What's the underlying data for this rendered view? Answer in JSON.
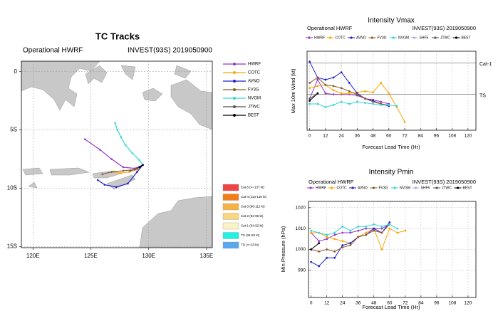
{
  "chart_data": [
    {
      "type": "track",
      "title": "TC Tracks",
      "subtitle_left": "Operational HWRF",
      "subtitle_right": "INVEST(93S) 2019050900",
      "xlim": [
        119,
        135.5
      ],
      "ylim": [
        -15.1,
        0.9
      ],
      "xticks": [
        {
          "value": 120,
          "label": "120E"
        },
        {
          "value": 125,
          "label": "125E"
        },
        {
          "value": 130,
          "label": "130E"
        },
        {
          "value": 135,
          "label": "135E"
        }
      ],
      "yticks": [
        0,
        {
          "value": -5,
          "label": "5S"
        },
        {
          "value": -10,
          "label": "10S"
        },
        {
          "value": -15,
          "label": "15S"
        }
      ],
      "grid": true,
      "series": [
        {
          "name": "HWRF",
          "color": "#9933cc",
          "lon": [
            129.5,
            128.8,
            127.8,
            126.8,
            125.8,
            124.5
          ],
          "lat": [
            -8.0,
            -8.3,
            -8.2,
            -7.5,
            -6.7,
            -5.8
          ]
        },
        {
          "name": "COTC",
          "color": "#ffa500",
          "lon": [
            129.5,
            129.0,
            128.3,
            127.6,
            127.0
          ],
          "lat": [
            -8.0,
            -8.4,
            -8.6,
            -8.7,
            -8.6
          ]
        },
        {
          "name": "AVNO",
          "color": "#1f1fcc",
          "lon": [
            129.5,
            129.0,
            128.2,
            127.2,
            126.2,
            125.6
          ],
          "lat": [
            -8.0,
            -8.6,
            -9.6,
            -9.9,
            -9.7,
            -9.3
          ]
        },
        {
          "name": "FV3G",
          "color": "#8b5a2b",
          "lon": [
            129.5,
            128.8,
            127.8,
            126.8,
            126.0
          ],
          "lat": [
            -8.0,
            -8.4,
            -8.5,
            -8.6,
            -8.8
          ]
        },
        {
          "name": "NVGM",
          "color": "#33d6d6",
          "lon": [
            129.5,
            129.2,
            128.6,
            128.0,
            127.6,
            127.3,
            127.1
          ],
          "lat": [
            -8.0,
            -7.6,
            -7.0,
            -6.3,
            -5.6,
            -5.0,
            -4.4
          ]
        },
        {
          "name": "JTWC",
          "color": "#555555",
          "lon": [
            129.5,
            129.0,
            128.4
          ],
          "lat": [
            -8.0,
            -8.3,
            -8.5
          ]
        },
        {
          "name": "BEST",
          "color": "#000000",
          "lon": [
            129.5,
            129.2
          ],
          "lat": [
            -8.0,
            -8.2
          ]
        }
      ],
      "intensity_legend": [
        {
          "name": "Cat-5 (>=137 kt)",
          "color": "#ee4444"
        },
        {
          "name": "Cat-4 (113-136 kt)",
          "color": "#f07f1a"
        },
        {
          "name": "Cat-3 (96-112 kt)",
          "color": "#f5b347"
        },
        {
          "name": "Cat-2 (83-95 kt)",
          "color": "#f8d77f"
        },
        {
          "name": "Cat-1 (64-82 kt)",
          "color": "#fbf3c4"
        },
        {
          "name": "TS (34-63 kt)",
          "color": "#22f2e6"
        },
        {
          "name": "TD (<=33 kt)",
          "color": "#5aa8f0"
        }
      ]
    },
    {
      "type": "line",
      "title": "Intensity Vmax",
      "subtitle_left": "Operational HWRF",
      "subtitle_right": "INVEST(93S) 2019050900",
      "x_label": "Forecast Lead Time (Hr)",
      "y_label": "Max 10m Wind (kt)",
      "xlim": [
        -2,
        126
      ],
      "ylim": [
        0,
        75
      ],
      "xticks": [
        0,
        12,
        24,
        36,
        48,
        60,
        72,
        84,
        96,
        108,
        120
      ],
      "grid": true,
      "reference_lines": [
        {
          "value": 64,
          "label": "Cat-1"
        },
        {
          "value": 34,
          "label": "TS"
        }
      ],
      "x": [
        0,
        6,
        12,
        18,
        24,
        30,
        36,
        42,
        48,
        54,
        60,
        66,
        72
      ],
      "series": [
        {
          "name": "HWRF",
          "color": "#9933cc",
          "values": [
            30,
            48,
            35,
            34,
            34,
            34,
            33,
            30,
            29,
            27,
            25,
            null,
            null
          ]
        },
        {
          "name": "COTC",
          "color": "#ffa500",
          "values": [
            40,
            42,
            43,
            38,
            35,
            35,
            36,
            37,
            36,
            45,
            35,
            22,
            8
          ]
        },
        {
          "name": "AVNO",
          "color": "#1f1fcc",
          "values": [
            65,
            50,
            48,
            50,
            55,
            45,
            35,
            30,
            28,
            25,
            23,
            null,
            null
          ]
        },
        {
          "name": "FV3G",
          "color": "#8b5a2b",
          "values": [
            45,
            50,
            43,
            42,
            40,
            37,
            34,
            30,
            27,
            25,
            24,
            null,
            null
          ]
        },
        {
          "name": "NVGM",
          "color": "#33d6d6",
          "values": [
            25,
            25,
            22,
            24,
            27,
            25,
            27,
            26,
            25,
            24,
            24,
            23,
            null
          ]
        },
        {
          "name": "SHF5",
          "color": "#aaaadd",
          "values": [
            null,
            null,
            null,
            null,
            null,
            null,
            null,
            null,
            null,
            null,
            null,
            null,
            null
          ]
        },
        {
          "name": "JTWC",
          "color": "#555555",
          "values": [
            30,
            35,
            null,
            null,
            null,
            null,
            null,
            null,
            null,
            null,
            null,
            null,
            null
          ]
        },
        {
          "name": "BEST",
          "color": "#000000",
          "values": [
            28,
            35,
            null,
            null,
            null,
            null,
            null,
            null,
            null,
            null,
            null,
            null,
            null
          ]
        }
      ]
    },
    {
      "type": "line",
      "title": "Intensity Pmin",
      "subtitle_left": "Operational HWRF",
      "subtitle_right": "INVEST(93S) 2019050900",
      "x_label": "Forecast Lead Time (Hr)",
      "y_label": "Min Pressure (hPa)",
      "xlim": [
        -2,
        126
      ],
      "ylim": [
        977,
        1023
      ],
      "xticks": [
        0,
        12,
        24,
        36,
        48,
        60,
        72,
        84,
        96,
        108,
        120
      ],
      "yticks": [
        990,
        1000,
        1010,
        1020
      ],
      "grid": true,
      "x": [
        0,
        6,
        12,
        18,
        24,
        30,
        36,
        42,
        48,
        54,
        60,
        66,
        72
      ],
      "series": [
        {
          "name": "HWRF",
          "color": "#9933cc",
          "values": [
            1008,
            1004,
            1005,
            1007,
            1008,
            1008,
            1009,
            1010,
            1010,
            1010,
            1012,
            null,
            null
          ]
        },
        {
          "name": "COTC",
          "color": "#ffa500",
          "values": [
            1008,
            1008,
            1006,
            1005,
            1004,
            1003,
            1006,
            1008,
            1010,
            1000,
            1010,
            1008,
            1009
          ]
        },
        {
          "name": "AVNO",
          "color": "#1f1fcc",
          "values": [
            994,
            992,
            996,
            996,
            1002,
            1003,
            1006,
            1007,
            1010,
            1008,
            1013,
            null,
            null
          ]
        },
        {
          "name": "FV3G",
          "color": "#8b5a2b",
          "values": [
            1000,
            999,
            1000,
            999,
            1001,
            1002,
            1006,
            1007,
            1009,
            1008,
            1012,
            null,
            null
          ]
        },
        {
          "name": "NVGM",
          "color": "#33d6d6",
          "values": [
            1009,
            1008,
            1007,
            1008,
            1011,
            1009,
            1011,
            1011,
            1012,
            1011,
            1012,
            1010,
            null
          ]
        },
        {
          "name": "SHF5",
          "color": "#aaaadd",
          "values": [
            null,
            null,
            null,
            null,
            null,
            null,
            null,
            null,
            null,
            null,
            null,
            null,
            null
          ]
        },
        {
          "name": "JTWC",
          "color": "#555555",
          "values": [
            1000,
            null,
            null,
            null,
            null,
            null,
            null,
            null,
            null,
            null,
            null,
            null,
            null
          ]
        },
        {
          "name": "BEST",
          "color": "#000000",
          "values": [
            1000,
            1003,
            null,
            null,
            null,
            null,
            null,
            null,
            null,
            null,
            null,
            null,
            null
          ]
        }
      ]
    }
  ]
}
